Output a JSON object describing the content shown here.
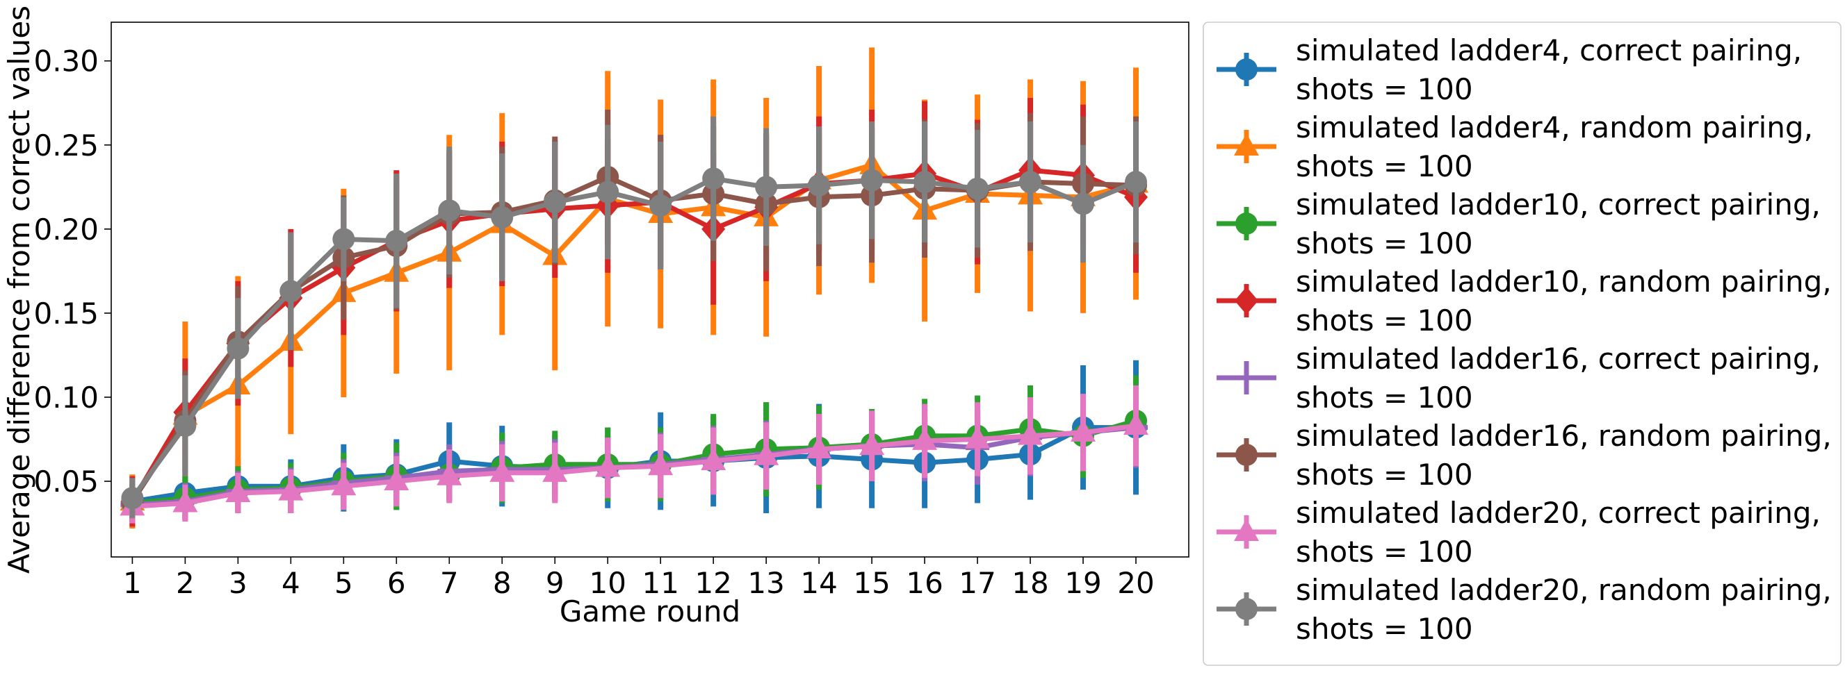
{
  "chart_data": {
    "type": "line",
    "title": "",
    "xlabel": "Game round",
    "ylabel": "Average difference from correct values",
    "x": [
      1,
      2,
      3,
      4,
      5,
      6,
      7,
      8,
      9,
      10,
      11,
      12,
      13,
      14,
      15,
      16,
      17,
      18,
      19,
      20
    ],
    "x_ticks": [
      "1",
      "2",
      "3",
      "4",
      "5",
      "6",
      "7",
      "8",
      "9",
      "10",
      "11",
      "12",
      "13",
      "14",
      "15",
      "16",
      "17",
      "18",
      "19",
      "20"
    ],
    "y_ticks": [
      "0.05",
      "0.10",
      "0.15",
      "0.20",
      "0.25",
      "0.30"
    ],
    "y_tick_values": [
      0.05,
      0.1,
      0.15,
      0.2,
      0.25,
      0.3
    ],
    "xlim": [
      0.6,
      21.0
    ],
    "ylim": [
      0.005,
      0.323
    ],
    "grid": false,
    "legend_position": "outside-right",
    "series": [
      {
        "name": [
          "simulated ladder4, correct pairing,",
          "shots = 100"
        ],
        "color": "#1f77b4",
        "marker": "circle",
        "values": [
          0.038,
          0.043,
          0.047,
          0.047,
          0.052,
          0.054,
          0.062,
          0.059,
          0.058,
          0.058,
          0.062,
          0.062,
          0.064,
          0.065,
          0.063,
          0.061,
          0.063,
          0.066,
          0.082,
          0.082
        ],
        "errors": [
          0.016,
          0.016,
          0.016,
          0.016,
          0.02,
          0.021,
          0.023,
          0.024,
          0.02,
          0.024,
          0.029,
          0.027,
          0.033,
          0.031,
          0.029,
          0.027,
          0.026,
          0.027,
          0.037,
          0.04
        ]
      },
      {
        "name": [
          "simulated ladder4, random pairing,",
          "shots = 100"
        ],
        "color": "#ff7f0e",
        "marker": "triangle",
        "values": [
          0.038,
          0.089,
          0.107,
          0.133,
          0.162,
          0.174,
          0.186,
          0.203,
          0.184,
          0.218,
          0.209,
          0.213,
          0.207,
          0.229,
          0.238,
          0.211,
          0.221,
          0.22,
          0.219,
          0.227
        ],
        "errors": [
          0.016,
          0.056,
          0.065,
          0.055,
          0.062,
          0.06,
          0.07,
          0.066,
          0.068,
          0.076,
          0.068,
          0.076,
          0.071,
          0.068,
          0.07,
          0.066,
          0.059,
          0.069,
          0.069,
          0.069
        ]
      },
      {
        "name": [
          "simulated ladder10, correct pairing,",
          "shots = 100"
        ],
        "color": "#2ca02c",
        "marker": "circle",
        "values": [
          0.037,
          0.04,
          0.045,
          0.046,
          0.05,
          0.053,
          0.054,
          0.058,
          0.06,
          0.06,
          0.06,
          0.066,
          0.069,
          0.07,
          0.072,
          0.077,
          0.077,
          0.081,
          0.077,
          0.086
        ],
        "errors": [
          0.012,
          0.013,
          0.014,
          0.015,
          0.017,
          0.02,
          0.016,
          0.021,
          0.02,
          0.022,
          0.022,
          0.024,
          0.028,
          0.025,
          0.021,
          0.022,
          0.024,
          0.026,
          0.025,
          0.027
        ]
      },
      {
        "name": [
          "simulated ladder10, random pairing,",
          "shots = 100"
        ],
        "color": "#d62728",
        "marker": "diamond",
        "values": [
          0.038,
          0.091,
          0.132,
          0.159,
          0.177,
          0.193,
          0.205,
          0.209,
          0.212,
          0.214,
          0.216,
          0.2,
          0.213,
          0.227,
          0.229,
          0.233,
          0.222,
          0.235,
          0.232,
          0.219
        ],
        "errors": [
          0.015,
          0.032,
          0.037,
          0.041,
          0.04,
          0.042,
          0.04,
          0.043,
          0.041,
          0.04,
          0.04,
          0.045,
          0.044,
          0.04,
          0.042,
          0.043,
          0.043,
          0.043,
          0.042,
          0.045
        ]
      },
      {
        "name": [
          "simulated ladder16, correct pairing,",
          "shots = 100"
        ],
        "color": "#9467bd",
        "marker": "plus",
        "values": [
          0.036,
          0.038,
          0.044,
          0.045,
          0.049,
          0.052,
          0.056,
          0.057,
          0.057,
          0.058,
          0.06,
          0.063,
          0.066,
          0.069,
          0.071,
          0.072,
          0.07,
          0.076,
          0.079,
          0.082
        ],
        "errors": [
          0.01,
          0.011,
          0.012,
          0.013,
          0.014,
          0.015,
          0.016,
          0.017,
          0.018,
          0.018,
          0.019,
          0.02,
          0.02,
          0.021,
          0.021,
          0.022,
          0.022,
          0.023,
          0.023,
          0.024
        ]
      },
      {
        "name": [
          "simulated ladder16, random pairing,",
          "shots = 100"
        ],
        "color": "#8c564b",
        "marker": "circle",
        "values": [
          0.038,
          0.086,
          0.133,
          0.163,
          0.183,
          0.19,
          0.209,
          0.21,
          0.217,
          0.231,
          0.217,
          0.221,
          0.215,
          0.219,
          0.22,
          0.224,
          0.223,
          0.228,
          0.227,
          0.226
        ],
        "errors": [
          0.012,
          0.03,
          0.033,
          0.035,
          0.037,
          0.038,
          0.038,
          0.039,
          0.038,
          0.04,
          0.039,
          0.04,
          0.04,
          0.041,
          0.04,
          0.041,
          0.04,
          0.041,
          0.04,
          0.041
        ]
      },
      {
        "name": [
          "simulated ladder20, correct pairing,",
          "shots = 100"
        ],
        "color": "#e377c2",
        "marker": "triangle",
        "values": [
          0.035,
          0.037,
          0.043,
          0.044,
          0.047,
          0.05,
          0.053,
          0.055,
          0.055,
          0.058,
          0.059,
          0.062,
          0.065,
          0.069,
          0.071,
          0.074,
          0.075,
          0.077,
          0.079,
          0.083
        ],
        "errors": [
          0.01,
          0.011,
          0.012,
          0.013,
          0.014,
          0.015,
          0.016,
          0.017,
          0.018,
          0.018,
          0.019,
          0.02,
          0.02,
          0.021,
          0.021,
          0.022,
          0.022,
          0.023,
          0.023,
          0.024
        ]
      },
      {
        "name": [
          "simulated ladder20, random pairing,",
          "shots = 100"
        ],
        "color": "#7f7f7f",
        "marker": "circle",
        "values": [
          0.04,
          0.083,
          0.129,
          0.163,
          0.194,
          0.193,
          0.211,
          0.207,
          0.216,
          0.222,
          0.214,
          0.23,
          0.225,
          0.226,
          0.229,
          0.228,
          0.224,
          0.228,
          0.215,
          0.228
        ],
        "errors": [
          0.012,
          0.03,
          0.03,
          0.035,
          0.025,
          0.04,
          0.038,
          0.038,
          0.036,
          0.04,
          0.038,
          0.037,
          0.035,
          0.035,
          0.035,
          0.036,
          0.035,
          0.036,
          0.035,
          0.036
        ]
      }
    ]
  }
}
